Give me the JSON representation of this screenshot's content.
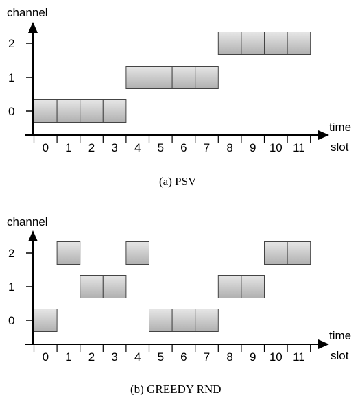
{
  "panels": [
    {
      "caption": "(a) PSV",
      "y_label": "channel",
      "x_label_line1": "time",
      "x_label_line2": "slot",
      "y_ticks": [
        "0",
        "1",
        "2"
      ],
      "x_ticks": [
        "0",
        "1",
        "2",
        "3",
        "4",
        "5",
        "6",
        "7",
        "8",
        "9",
        "10",
        "11"
      ],
      "cells": [
        {
          "slot": 0,
          "channel": 0
        },
        {
          "slot": 1,
          "channel": 0
        },
        {
          "slot": 2,
          "channel": 0
        },
        {
          "slot": 3,
          "channel": 0
        },
        {
          "slot": 4,
          "channel": 1
        },
        {
          "slot": 5,
          "channel": 1
        },
        {
          "slot": 6,
          "channel": 1
        },
        {
          "slot": 7,
          "channel": 1
        },
        {
          "slot": 8,
          "channel": 2
        },
        {
          "slot": 9,
          "channel": 2
        },
        {
          "slot": 10,
          "channel": 2
        },
        {
          "slot": 11,
          "channel": 2
        }
      ]
    },
    {
      "caption": "(b) GREEDY RND",
      "y_label": "channel",
      "x_label_line1": "time",
      "x_label_line2": "slot",
      "y_ticks": [
        "0",
        "1",
        "2"
      ],
      "x_ticks": [
        "0",
        "1",
        "2",
        "3",
        "4",
        "5",
        "6",
        "7",
        "8",
        "9",
        "10",
        "11"
      ],
      "cells": [
        {
          "slot": 0,
          "channel": 0
        },
        {
          "slot": 1,
          "channel": 2
        },
        {
          "slot": 2,
          "channel": 1
        },
        {
          "slot": 3,
          "channel": 1
        },
        {
          "slot": 4,
          "channel": 2
        },
        {
          "slot": 5,
          "channel": 0
        },
        {
          "slot": 6,
          "channel": 0
        },
        {
          "slot": 7,
          "channel": 0
        },
        {
          "slot": 8,
          "channel": 1
        },
        {
          "slot": 9,
          "channel": 1
        },
        {
          "slot": 10,
          "channel": 2
        },
        {
          "slot": 11,
          "channel": 2
        }
      ]
    }
  ],
  "colors": {
    "axis": "#000000",
    "cell_fill_top": "#e6e6e6",
    "cell_fill_bottom": "#b0b0b0",
    "cell_stroke": "#444444"
  }
}
